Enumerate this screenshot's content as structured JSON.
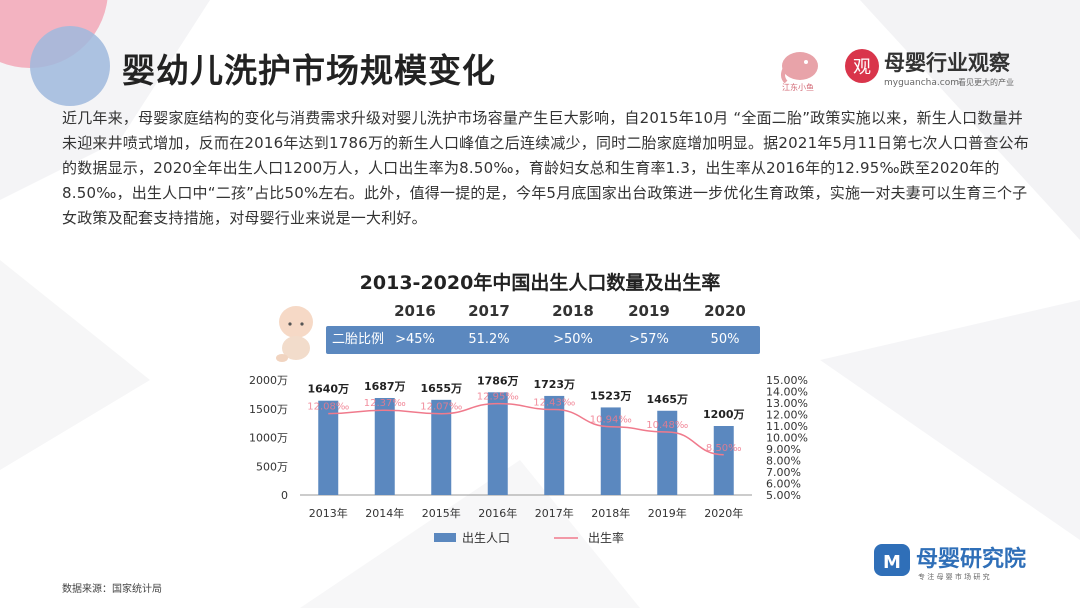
{
  "header": {
    "title": "婴幼儿洗护市场规模变化",
    "brand_logo_small_text": "江东小鱼",
    "brand_name": "母婴行业观察",
    "brand_badge": "观",
    "brand_url": "myguancha.com",
    "brand_slogan": "看见更大的产业"
  },
  "intro": {
    "text": "近几年来，母婴家庭结构的变化与消费需求升级对婴儿洗护市场容量产生巨大影响，自2015年10月 “全面二胎”政策实施以来，新生人口数量并未迎来井喷式增加，反而在2016年达到1786万的新生人口峰值之后连续减少，同时二胎家庭增加明显。据2021年5月11日第七次人口普查公布的数据显示，2020全年出生人口1200万人，人口出生率为8.50‰，育龄妇女总和生育率1.3，出生率从2016年的12.95‰跌至2020年的8.50‰，出生人口中“二孩”占比50%左右。此外，值得一提的是，今年5月底国家出台政策进一步优化生育政策，实施一对夫妻可以生育三个子女政策及配套支持措施，对母婴行业来说是一大利好。"
  },
  "second_child": {
    "label": "二胎比例",
    "years": [
      "2016",
      "2017",
      "2018",
      "2019",
      "2020"
    ],
    "values": [
      ">45%",
      "51.2%",
      ">50%",
      ">57%",
      "50%"
    ]
  },
  "chart_data": {
    "type": "bar",
    "title": "2013-2020年中国出生人口数量及出生率",
    "categories": [
      "2013年",
      "2014年",
      "2015年",
      "2016年",
      "2017年",
      "2018年",
      "2019年",
      "2020年"
    ],
    "series": [
      {
        "name": "出生人口",
        "type": "bar",
        "axis": "left",
        "values": [
          1640,
          1687,
          1655,
          1786,
          1723,
          1523,
          1465,
          1200
        ],
        "labels": [
          "1640万",
          "1687万",
          "1655万",
          "1786万",
          "1723万",
          "1523万",
          "1465万",
          "1200万"
        ],
        "color": "#5b88bf"
      },
      {
        "name": "出生率",
        "type": "line",
        "axis": "right",
        "values": [
          12.08,
          12.37,
          12.07,
          12.95,
          12.43,
          10.94,
          10.48,
          8.5
        ],
        "labels": [
          "12.08‰",
          "12.37‰",
          "12.07‰",
          "12.95‰",
          "12.43‰",
          "10.94‰",
          "10.48‰",
          "8.50‰"
        ],
        "color": "#f07a8c"
      }
    ],
    "yleft": {
      "min": 0,
      "max": 2000,
      "ticks": [
        "0",
        "500万",
        "1000万",
        "1500万",
        "2000万"
      ],
      "tick_values": [
        0,
        500,
        1000,
        1500,
        2000
      ]
    },
    "yright": {
      "min": 5,
      "max": 15,
      "ticks": [
        "5.00%",
        "6.00%",
        "7.00%",
        "8.00%",
        "9.00%",
        "10.00%",
        "11.00%",
        "12.00%",
        "13.00%",
        "14.00%",
        "15.00%"
      ],
      "tick_values": [
        5,
        6,
        7,
        8,
        9,
        10,
        11,
        12,
        13,
        14,
        15
      ]
    },
    "legend": {
      "position": "bottom",
      "items": [
        "出生人口",
        "出生率"
      ]
    },
    "grid": false
  },
  "footer": {
    "source": "数据来源：国家统计局",
    "brand_bottom": "母婴研究院",
    "brand_bottom_slogan": "专 注 母 婴 市 场 研 究"
  },
  "colors": {
    "bar": "#5b88bf",
    "line": "#f07a8c",
    "ratio_bar": "#5b88bf",
    "bg_pink": "#f2a7b7",
    "bg_blue": "#9fb8dd"
  }
}
